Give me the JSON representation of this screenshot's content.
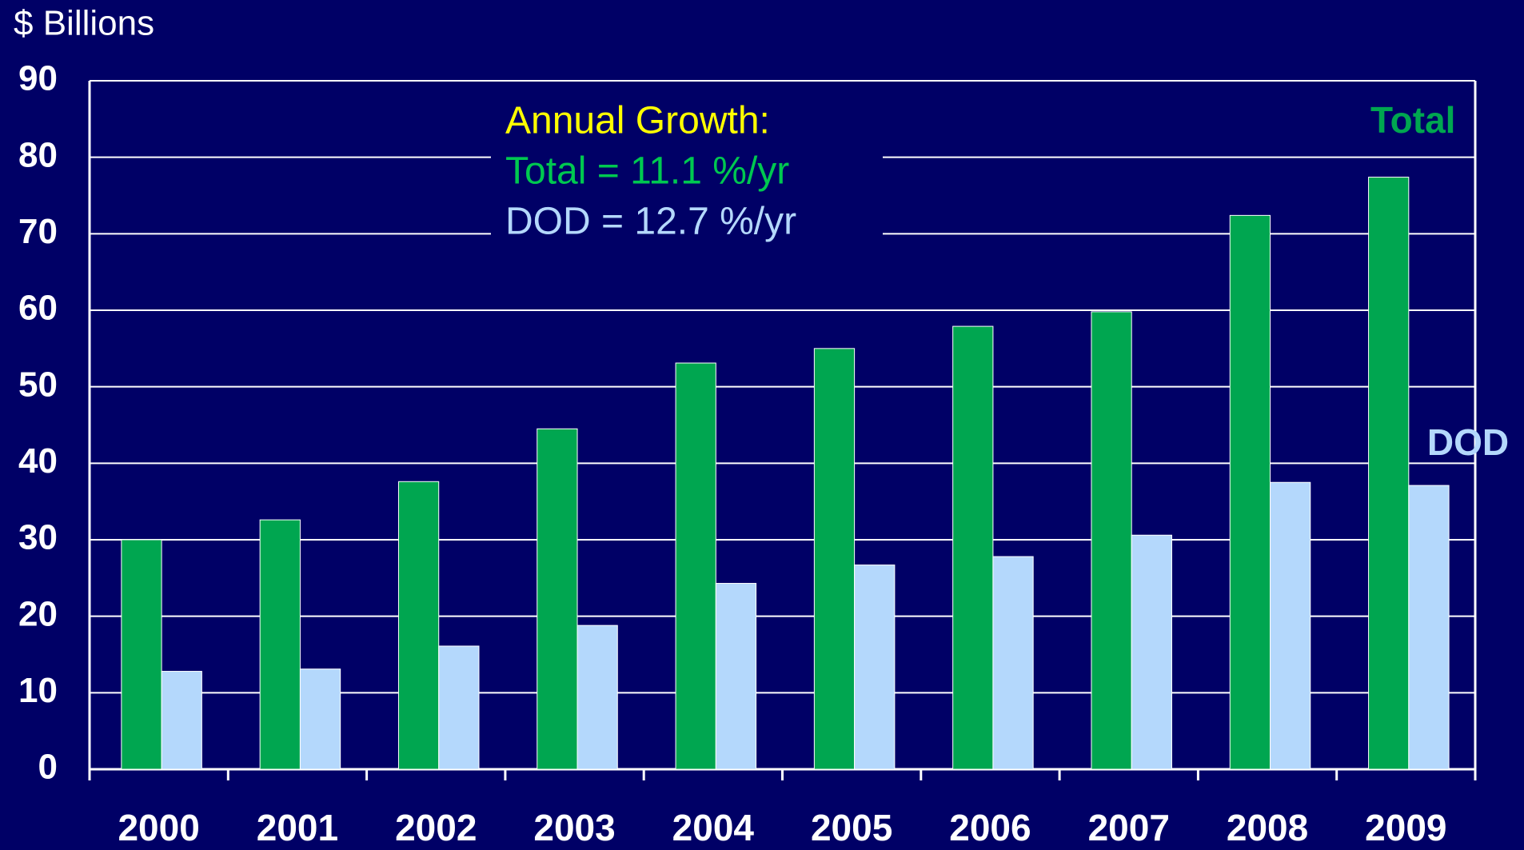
{
  "chart_data": {
    "type": "bar",
    "title": "$ Billions",
    "categories": [
      "2000",
      "2001",
      "2002",
      "2003",
      "2004",
      "2005",
      "2006",
      "2007",
      "2008",
      "2009"
    ],
    "series": [
      {
        "name": "Total",
        "color": "#00a650",
        "values": [
          30,
          32.6,
          37.6,
          44.5,
          53.1,
          55,
          57.9,
          59.8,
          72.4,
          77.4
        ]
      },
      {
        "name": "DOD",
        "color": "#b4d8fc",
        "values": [
          12.8,
          13.1,
          16.1,
          18.8,
          24.3,
          26.7,
          27.8,
          30.6,
          37.5,
          37.1
        ]
      }
    ],
    "annotations": [
      {
        "text": "Annual Growth:",
        "color": "#ffff00"
      },
      {
        "text": "Total = 11.1 %/yr",
        "color": "#00c850"
      },
      {
        "text": "DOD = 12.7 %/yr",
        "color": "#b4d8fc"
      }
    ],
    "ylim": [
      0,
      90
    ],
    "yticks": [
      0,
      10,
      20,
      30,
      40,
      50,
      60,
      70,
      80,
      90
    ],
    "grid": true
  }
}
